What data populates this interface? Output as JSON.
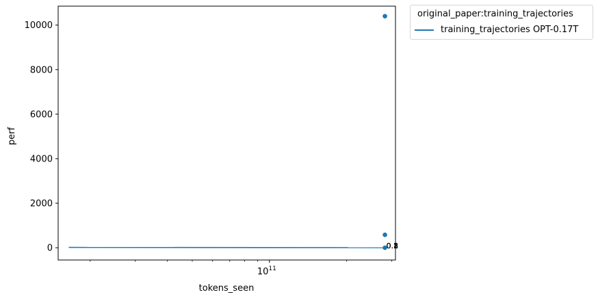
{
  "chart_data": {
    "type": "scatter",
    "title": "",
    "xlabel": "tokens_seen",
    "ylabel": "perf",
    "xscale": "log",
    "xlim": [
      15000000000,
      310000000000
    ],
    "ylim": [
      -550,
      10850
    ],
    "xticks": [
      {
        "value": 100000000000,
        "base": "10",
        "exp": "11"
      }
    ],
    "yticks": [
      0,
      2000,
      4000,
      6000,
      8000,
      10000
    ],
    "grid": false,
    "legend": {
      "title": "original_paper:training_trajectories",
      "placement": "outside-top-right",
      "entries": [
        {
          "label": "training_trajectories OPT-0.17T",
          "color": "#1f77b4"
        }
      ]
    },
    "series": [
      {
        "name": "training_trajectories OPT-0.17T",
        "kind": "line",
        "color": "#1f77b4",
        "x": [
          16500000000,
          282000000000
        ],
        "y": [
          15,
          5
        ]
      },
      {
        "kind": "points",
        "color": "#1f77b4",
        "x": [
          282000000000,
          282000000000,
          282000000000
        ],
        "y": [
          10400,
          580,
          0
        ]
      }
    ],
    "annotations": [
      {
        "text": "0.1",
        "x": 282000000000,
        "y": 10
      },
      {
        "text": "0.2",
        "x": 282000000000,
        "y": 10
      },
      {
        "text": "0.3",
        "x": 282000000000,
        "y": 10
      },
      {
        "text": "0.8",
        "x": 282000000000,
        "y": 10
      }
    ]
  }
}
